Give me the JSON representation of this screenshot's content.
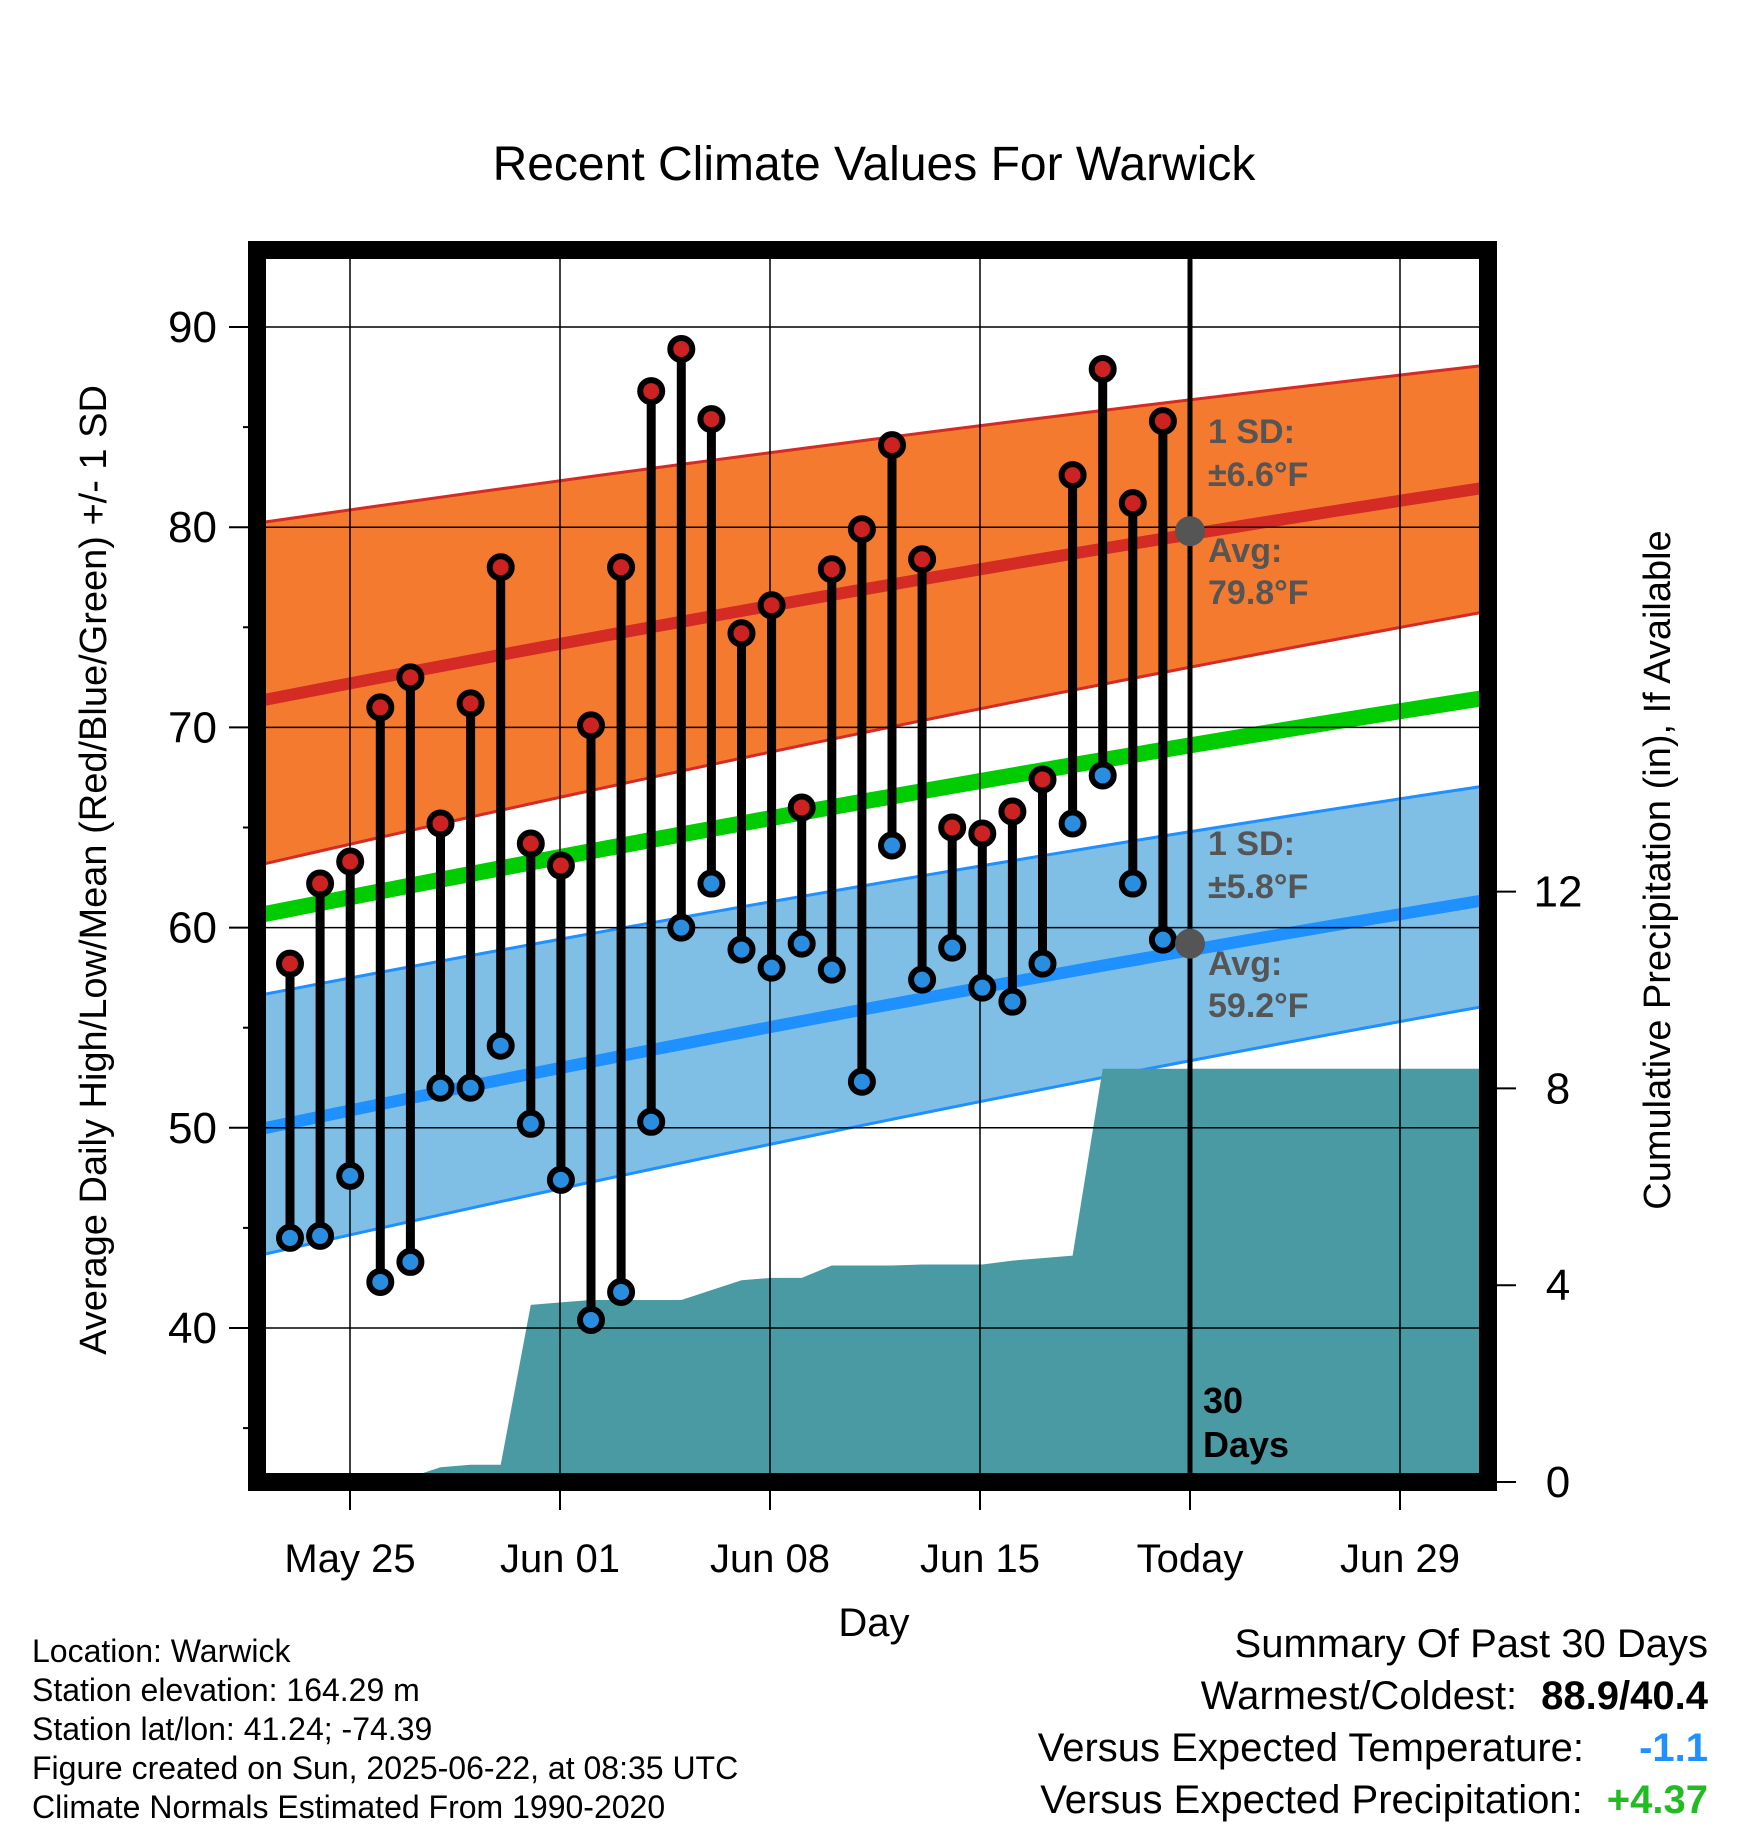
{
  "chart_data": {
    "type": "line",
    "title": "Recent Climate Values For Warwick",
    "xlabel": "Day",
    "ylabel": "Average Daily High/Low/Mean (Red/Blue/Green) +/- 1 SD",
    "y2label": "Cumulative Precipitation (in), If Available",
    "x_ticks": [
      "May 25",
      "Jun 01",
      "Jun 08",
      "Jun 15",
      "Today",
      "Jun 29"
    ],
    "ylim": [
      32,
      94
    ],
    "y_ticks": [
      "40",
      "50",
      "60",
      "70",
      "80",
      "90"
    ],
    "y2lim": [
      0,
      18.4
    ],
    "y2_ticks": [
      "0",
      "4",
      "8",
      "12"
    ],
    "grid": true,
    "series": [
      {
        "name": "High",
        "color": "#cc2222",
        "values": [
          58.2,
          62.2,
          63.3,
          71.0,
          72.5,
          65.2,
          71.2,
          78.0,
          64.2,
          63.1,
          70.1,
          78.0,
          86.8,
          88.9,
          85.4,
          74.7,
          76.1,
          66.0,
          77.9,
          79.9,
          84.1,
          78.4,
          65.0,
          64.7,
          65.8,
          67.4,
          82.6,
          87.9,
          81.2,
          85.3
        ]
      },
      {
        "name": "Low",
        "color": "#2a8ee0",
        "values": [
          44.5,
          44.6,
          47.6,
          42.3,
          43.3,
          52.0,
          52.0,
          54.1,
          50.2,
          47.4,
          40.4,
          41.8,
          50.3,
          60.0,
          62.2,
          58.9,
          58.0,
          59.2,
          57.9,
          52.3,
          64.1,
          57.4,
          59.0,
          57.0,
          56.3,
          58.2,
          65.2,
          67.6,
          62.2,
          59.4
        ]
      }
    ],
    "normals": {
      "high_avg_start": 71.3,
      "high_avg_end": 82.0,
      "high_band_top_start": 80.2,
      "high_band_top_end": 88.1,
      "high_band_bottom_start": 63.1,
      "high_band_bottom_end": 75.8,
      "mean_start": 60.6,
      "mean_end": 71.5,
      "low_avg_start": 49.9,
      "low_avg_end": 61.4,
      "low_band_top_start": 56.6,
      "low_band_top_end": 67.1,
      "low_band_bottom_start": 43.6,
      "low_band_bottom_end": 56.1
    },
    "precip_cumulative": [
      0.1,
      0.1,
      0.1,
      0.1,
      0.1,
      0.3,
      0.35,
      0.35,
      3.6,
      3.65,
      3.7,
      3.7,
      3.7,
      3.7,
      3.9,
      4.1,
      4.15,
      4.15,
      4.4,
      4.4,
      4.4,
      4.42,
      4.42,
      4.42,
      4.5,
      4.55,
      4.6,
      8.4,
      8.4,
      8.4,
      8.4,
      8.4,
      8.4,
      8.4,
      8.4,
      8.4,
      8.4,
      8.4,
      8.4,
      8.4,
      8.4
    ],
    "annotations": {
      "high_sd_label": "1 SD:",
      "high_sd_value": "±6.6°F",
      "high_avg_label": "Avg:",
      "high_avg_value": "79.8°F",
      "low_sd_label": "1 SD:",
      "low_sd_value": "±5.8°F",
      "low_avg_label": "Avg:",
      "low_avg_value": "59.2°F",
      "today_avg_high": 79.8,
      "today_avg_low": 59.2,
      "days_label_1": "30",
      "days_label_2": "Days"
    },
    "colors": {
      "high_band": "#f47a30",
      "high_avg_line": "#d42b24",
      "mean_line": "#00cc00",
      "low_band": "#7fbfe6",
      "low_avg_line": "#1e90ff",
      "precip": "#4a9aa4",
      "today_marker": "#555555",
      "annotation_text": "#555555"
    }
  },
  "footer": {
    "location": "Location: Warwick",
    "elevation": "Station elevation: 164.29 m",
    "latlon": "Station lat/lon: 41.24; -74.39",
    "created": "Figure created on Sun, 2025-06-22, at 08:35 UTC",
    "normals": "Climate Normals Estimated From 1990-2020"
  },
  "summary": {
    "title": "Summary Of Past 30 Days",
    "warmest_coldest_label": "Warmest/Coldest:",
    "warmest_coldest_value": "88.9/40.4",
    "temp_label": "Versus Expected Temperature:",
    "temp_value": "-1.1",
    "temp_color": "#1e90ff",
    "precip_label": "Versus Expected Precipitation:",
    "precip_value": "+4.37",
    "precip_color": "#22bb22"
  }
}
